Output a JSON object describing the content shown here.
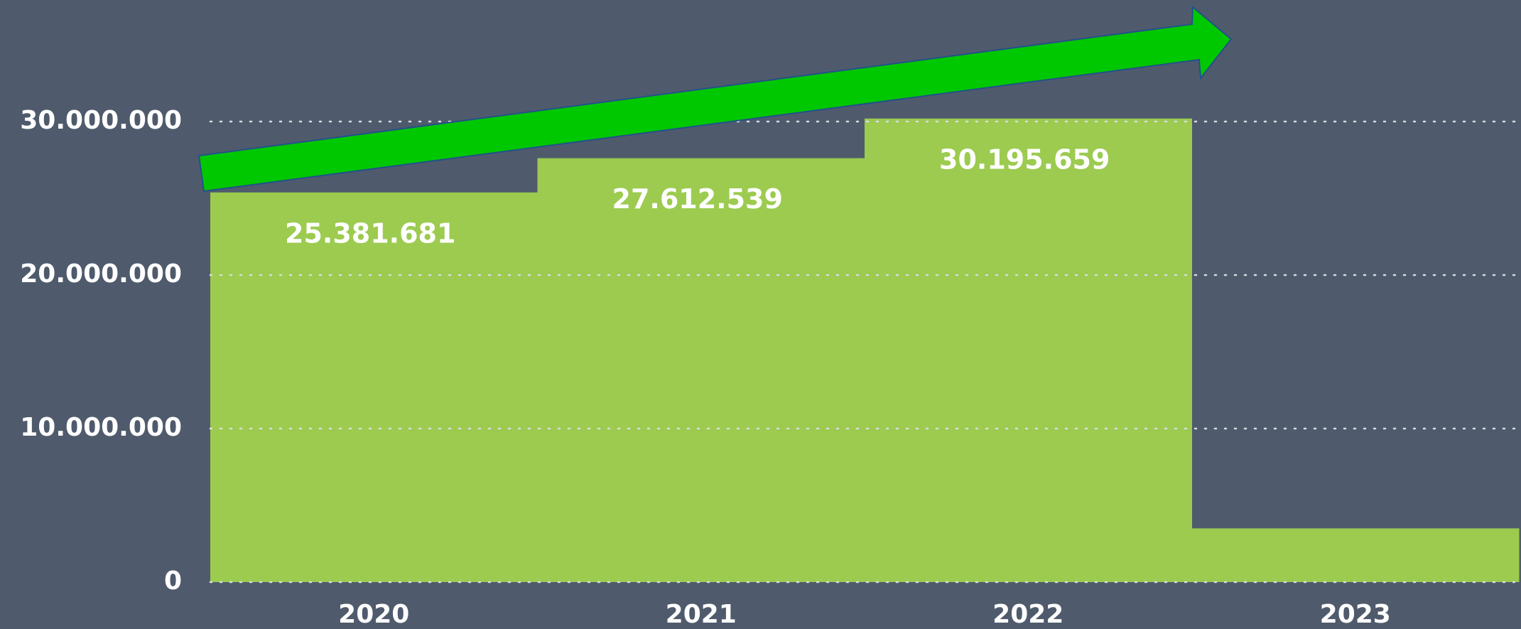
{
  "chart_data": {
    "type": "bar",
    "categories": [
      "2020",
      "2021",
      "2022",
      "2023"
    ],
    "values": [
      25381681,
      27612539,
      30195659,
      3500000
    ],
    "value_labels": [
      "25.381.681",
      "27.612.539",
      "30.195.659",
      null
    ],
    "color": "#9ccb50",
    "ylim": [
      0,
      30000000
    ],
    "yticks": [
      0,
      {
        "value": 10000000,
        "label": "10.000.000"
      },
      {
        "value": 20000000,
        "label": "20.000.000"
      },
      {
        "value": 30000000,
        "label": "30.000.000"
      }
    ],
    "grid": true
  }
}
